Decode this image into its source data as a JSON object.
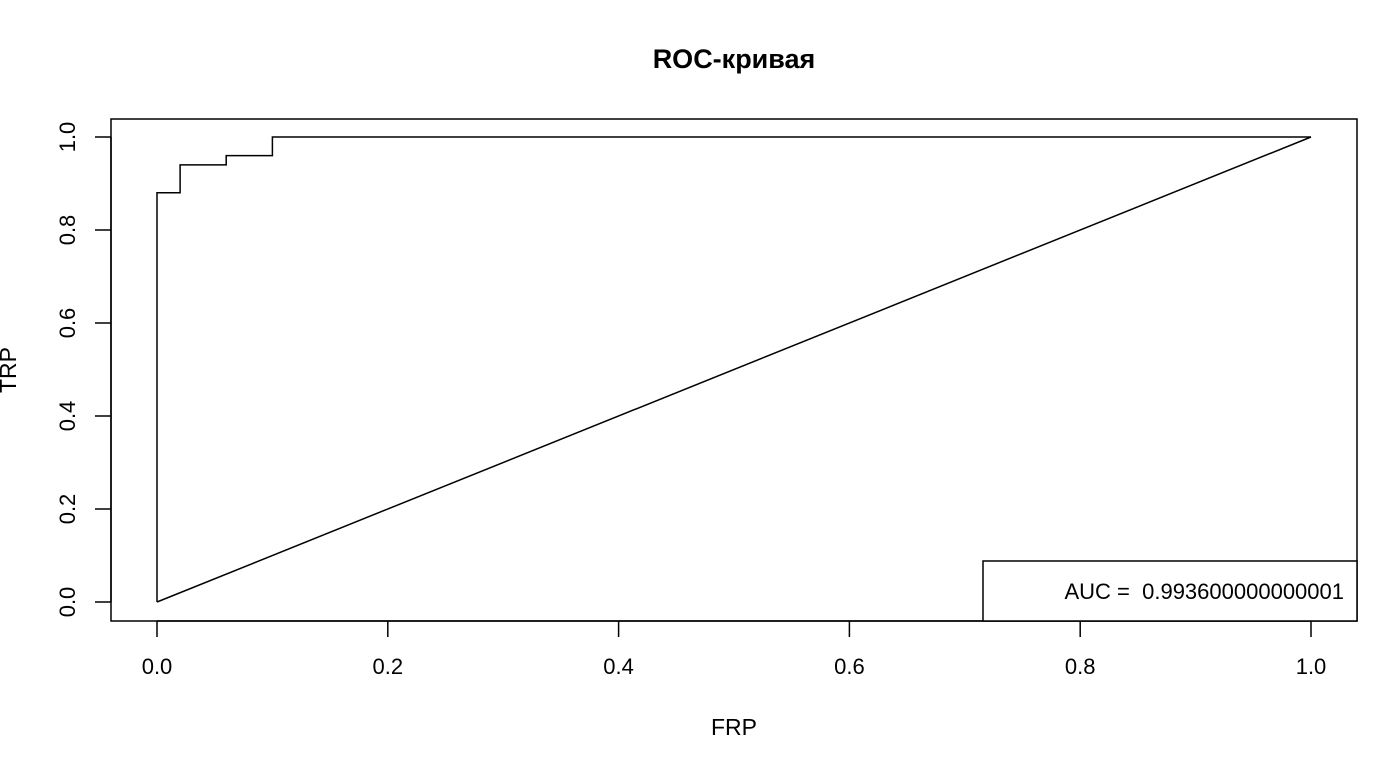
{
  "chart_data": {
    "type": "line",
    "title": "ROC-кривая",
    "xlabel": "FRP",
    "ylabel": "TRP",
    "xlim": [
      0,
      1
    ],
    "ylim": [
      0,
      1
    ],
    "x_ticks": [
      "0.0",
      "0.2",
      "0.4",
      "0.6",
      "0.8",
      "1.0"
    ],
    "y_ticks": [
      "0.0",
      "0.2",
      "0.4",
      "0.6",
      "0.8",
      "1.0"
    ],
    "grid": false,
    "legend_position": "bottom-right",
    "legend_text": "AUC =  0.993600000000001",
    "series": [
      {
        "style": "step",
        "x": [
          0,
          0,
          0.02,
          0.02,
          0.06,
          0.06,
          0.1,
          0.1,
          1.0
        ],
        "y": [
          0,
          0.88,
          0.88,
          0.94,
          0.94,
          0.96,
          0.96,
          1.0,
          1.0
        ]
      },
      {
        "style": "diagonal",
        "x": [
          0,
          1
        ],
        "y": [
          0,
          1
        ]
      }
    ]
  }
}
